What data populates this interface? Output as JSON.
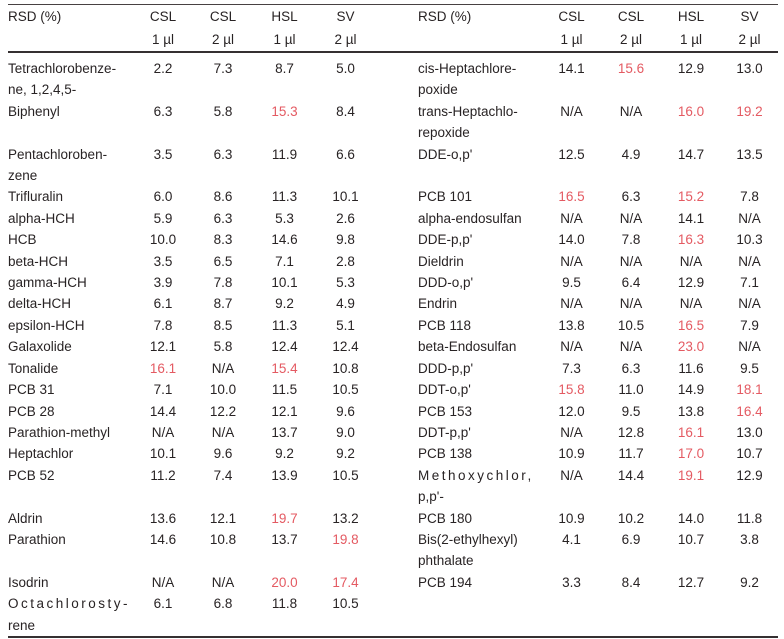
{
  "colors": {
    "text": "#282324",
    "highlight_red": "#e45a62",
    "rule": "#353031"
  },
  "table": {
    "header": {
      "row_label": "RSD (%)",
      "columns": [
        {
          "name": "CSL",
          "volume": "1 µl"
        },
        {
          "name": "CSL",
          "volume": "2 µl"
        },
        {
          "name": "HSL",
          "volume": "1 µl"
        },
        {
          "name": "SV",
          "volume": "2 µl"
        }
      ]
    },
    "rows": [
      {
        "left": {
          "label": "Tetrachlorobenze-\nne, 1,2,4,5-",
          "values": [
            "2.2",
            "7.3",
            "8.7",
            "5.0"
          ],
          "red": []
        },
        "right": {
          "label": "cis-Heptachlore-\npoxide",
          "values": [
            "14.1",
            "15.6",
            "12.9",
            "13.0"
          ],
          "red": [
            1
          ]
        }
      },
      {
        "left": {
          "label": "Biphenyl",
          "values": [
            "6.3",
            "5.8",
            "15.3",
            "8.4"
          ],
          "red": [
            2
          ]
        },
        "right": {
          "label": "trans-Heptachlo-\nrepoxide",
          "values": [
            "N/A",
            "N/A",
            "16.0",
            "19.2"
          ],
          "red": [
            2,
            3
          ]
        }
      },
      {
        "left": {
          "label": "Pentachloroben-\nzene",
          "values": [
            "3.5",
            "6.3",
            "11.9",
            "6.6"
          ],
          "red": []
        },
        "right": {
          "label": "DDE-o,p'",
          "values": [
            "12.5",
            "4.9",
            "14.7",
            "13.5"
          ],
          "red": []
        }
      },
      {
        "left": {
          "label": "Trifluralin",
          "values": [
            "6.0",
            "8.6",
            "11.3",
            "10.1"
          ],
          "red": []
        },
        "right": {
          "label": "PCB 101",
          "values": [
            "16.5",
            "6.3",
            "15.2",
            "7.8"
          ],
          "red": [
            0,
            2
          ]
        }
      },
      {
        "left": {
          "label": "alpha-HCH",
          "values": [
            "5.9",
            "6.3",
            "5.3",
            "2.6"
          ],
          "red": []
        },
        "right": {
          "label": "alpha-endosulfan",
          "values": [
            "N/A",
            "N/A",
            "14.1",
            "N/A"
          ],
          "red": []
        }
      },
      {
        "left": {
          "label": "HCB",
          "values": [
            "10.0",
            "8.3",
            "14.6",
            "9.8"
          ],
          "red": []
        },
        "right": {
          "label": "DDE-p,p'",
          "values": [
            "14.0",
            "7.8",
            "16.3",
            "10.3"
          ],
          "red": [
            2
          ]
        }
      },
      {
        "left": {
          "label": "beta-HCH",
          "values": [
            "3.5",
            "6.5",
            "7.1",
            "2.8"
          ],
          "red": []
        },
        "right": {
          "label": "Dieldrin",
          "values": [
            "N/A",
            "N/A",
            "N/A",
            "N/A"
          ],
          "red": []
        }
      },
      {
        "left": {
          "label": "gamma-HCH",
          "values": [
            "3.9",
            "7.8",
            "10.1",
            "5.3"
          ],
          "red": []
        },
        "right": {
          "label": "DDD-o,p'",
          "values": [
            "9.5",
            "6.4",
            "12.9",
            "7.1"
          ],
          "red": []
        }
      },
      {
        "left": {
          "label": "delta-HCH",
          "values": [
            "6.1",
            "8.7",
            "9.2",
            "4.9"
          ],
          "red": []
        },
        "right": {
          "label": "Endrin",
          "values": [
            "N/A",
            "N/A",
            "N/A",
            "N/A"
          ],
          "red": []
        }
      },
      {
        "left": {
          "label": "epsilon-HCH",
          "values": [
            "7.8",
            "8.5",
            "11.3",
            "5.1"
          ],
          "red": []
        },
        "right": {
          "label": "PCB 118",
          "values": [
            "13.8",
            "10.5",
            "16.5",
            "7.9"
          ],
          "red": [
            2
          ]
        }
      },
      {
        "left": {
          "label": "Galaxolide",
          "values": [
            "12.1",
            "5.8",
            "12.4",
            "12.4"
          ],
          "red": []
        },
        "right": {
          "label": "beta-Endosulfan",
          "values": [
            "N/A",
            "N/A",
            "23.0",
            "N/A"
          ],
          "red": [
            2
          ]
        }
      },
      {
        "left": {
          "label": "Tonalide",
          "values": [
            "16.1",
            "N/A",
            "15.4",
            "10.8"
          ],
          "red": [
            0,
            2
          ]
        },
        "right": {
          "label": "DDD-p,p'",
          "values": [
            "7.3",
            "6.3",
            "11.6",
            "9.5"
          ],
          "red": []
        }
      },
      {
        "left": {
          "label": "PCB 31",
          "values": [
            "7.1",
            "10.0",
            "11.5",
            "10.5"
          ],
          "red": []
        },
        "right": {
          "label": "DDT-o,p'",
          "values": [
            "15.8",
            "11.0",
            "14.9",
            "18.1"
          ],
          "red": [
            0,
            3
          ]
        }
      },
      {
        "left": {
          "label": "PCB 28",
          "values": [
            "14.4",
            "12.2",
            "12.1",
            "9.6"
          ],
          "red": []
        },
        "right": {
          "label": "PCB 153",
          "values": [
            "12.0",
            "9.5",
            "13.8",
            "16.4"
          ],
          "red": [
            3
          ]
        }
      },
      {
        "left": {
          "label": "Parathion-methyl",
          "values": [
            "N/A",
            "N/A",
            "13.7",
            "9.0"
          ],
          "red": []
        },
        "right": {
          "label": "DDT-p,p'",
          "values": [
            "N/A",
            "12.8",
            "16.1",
            "13.0"
          ],
          "red": [
            2
          ]
        }
      },
      {
        "left": {
          "label": "Heptachlor",
          "values": [
            "10.1",
            "9.6",
            "9.2",
            "9.2"
          ],
          "red": []
        },
        "right": {
          "label": "PCB 138",
          "values": [
            "10.9",
            "11.7",
            "17.0",
            "10.7"
          ],
          "red": [
            2
          ]
        }
      },
      {
        "left": {
          "label": "PCB 52",
          "values": [
            "11.2",
            "7.4",
            "13.9",
            "10.5"
          ],
          "red": []
        },
        "right": {
          "label": "Methoxychlor,\np,p'-",
          "values": [
            "N/A",
            "14.4",
            "19.1",
            "12.9"
          ],
          "red": [
            2
          ],
          "spaced": true
        }
      },
      {
        "left": {
          "label": "Aldrin",
          "values": [
            "13.6",
            "12.1",
            "19.7",
            "13.2"
          ],
          "red": [
            2
          ]
        },
        "right": {
          "label": "PCB 180",
          "values": [
            "10.9",
            "10.2",
            "14.0",
            "11.8"
          ],
          "red": []
        }
      },
      {
        "left": {
          "label": "Parathion",
          "values": [
            "14.6",
            "10.8",
            "13.7",
            "19.8"
          ],
          "red": [
            3
          ]
        },
        "right": {
          "label": "Bis(2-ethylhexyl)\nphthalate",
          "values": [
            "4.1",
            "6.9",
            "10.7",
            "3.8"
          ],
          "red": []
        }
      },
      {
        "left": {
          "label": "Isodrin",
          "values": [
            "N/A",
            "N/A",
            "20.0",
            "17.4"
          ],
          "red": [
            2,
            3
          ]
        },
        "right": {
          "label": "PCB 194",
          "values": [
            "3.3",
            "8.4",
            "12.7",
            "9.2"
          ],
          "red": []
        }
      },
      {
        "left": {
          "label": "Octachlorosty-\nrene",
          "values": [
            "6.1",
            "6.8",
            "11.8",
            "10.5"
          ],
          "red": [],
          "spaced": true
        },
        "right": {
          "label": "",
          "values": [
            "",
            "",
            "",
            ""
          ],
          "red": []
        }
      }
    ]
  }
}
